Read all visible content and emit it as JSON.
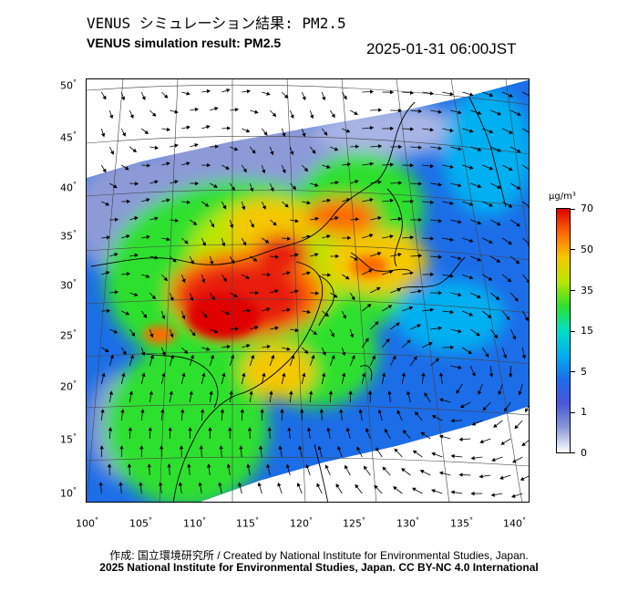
{
  "header": {
    "title_ja": "VENUS シミュレーション結果: PM2.5",
    "title_en": "VENUS simulation result: PM2.5",
    "timestamp": "2025-01-31 06:00JST"
  },
  "map": {
    "variable": "PM2.5",
    "lat_labels": [
      "50",
      "45",
      "40",
      "35",
      "30",
      "25",
      "20",
      "15",
      "10"
    ],
    "lon_labels": [
      "100",
      "105",
      "110",
      "115",
      "120",
      "125",
      "130",
      "135",
      "140"
    ],
    "degree_symbol": "°",
    "overlay": "wind-vectors",
    "colors": {
      "ocean_blue": "#1a6fe0",
      "high_red": "#e81a0a",
      "mid_green": "#3ccc3c",
      "land_line": "#000000"
    }
  },
  "colorbar": {
    "unit": "μg/m³",
    "labels": [
      "70",
      "50",
      "35",
      "15",
      "5",
      "1",
      "0"
    ],
    "stops": [
      "#e00000",
      "#ff6a00",
      "#f5c800",
      "#b8e600",
      "#2ee02e",
      "#00e0c8",
      "#00b0f0",
      "#1c6de8",
      "#4a58d8",
      "#8c9ad8",
      "#ffffff"
    ]
  },
  "footer": {
    "credit_line1": "作成: 国立環境研究所 / Created by National Institute for Environmental Studies, Japan.",
    "credit_line2": "2025 National Institute for Environmental Studies, Japan. CC BY-NC 4.0 International"
  }
}
